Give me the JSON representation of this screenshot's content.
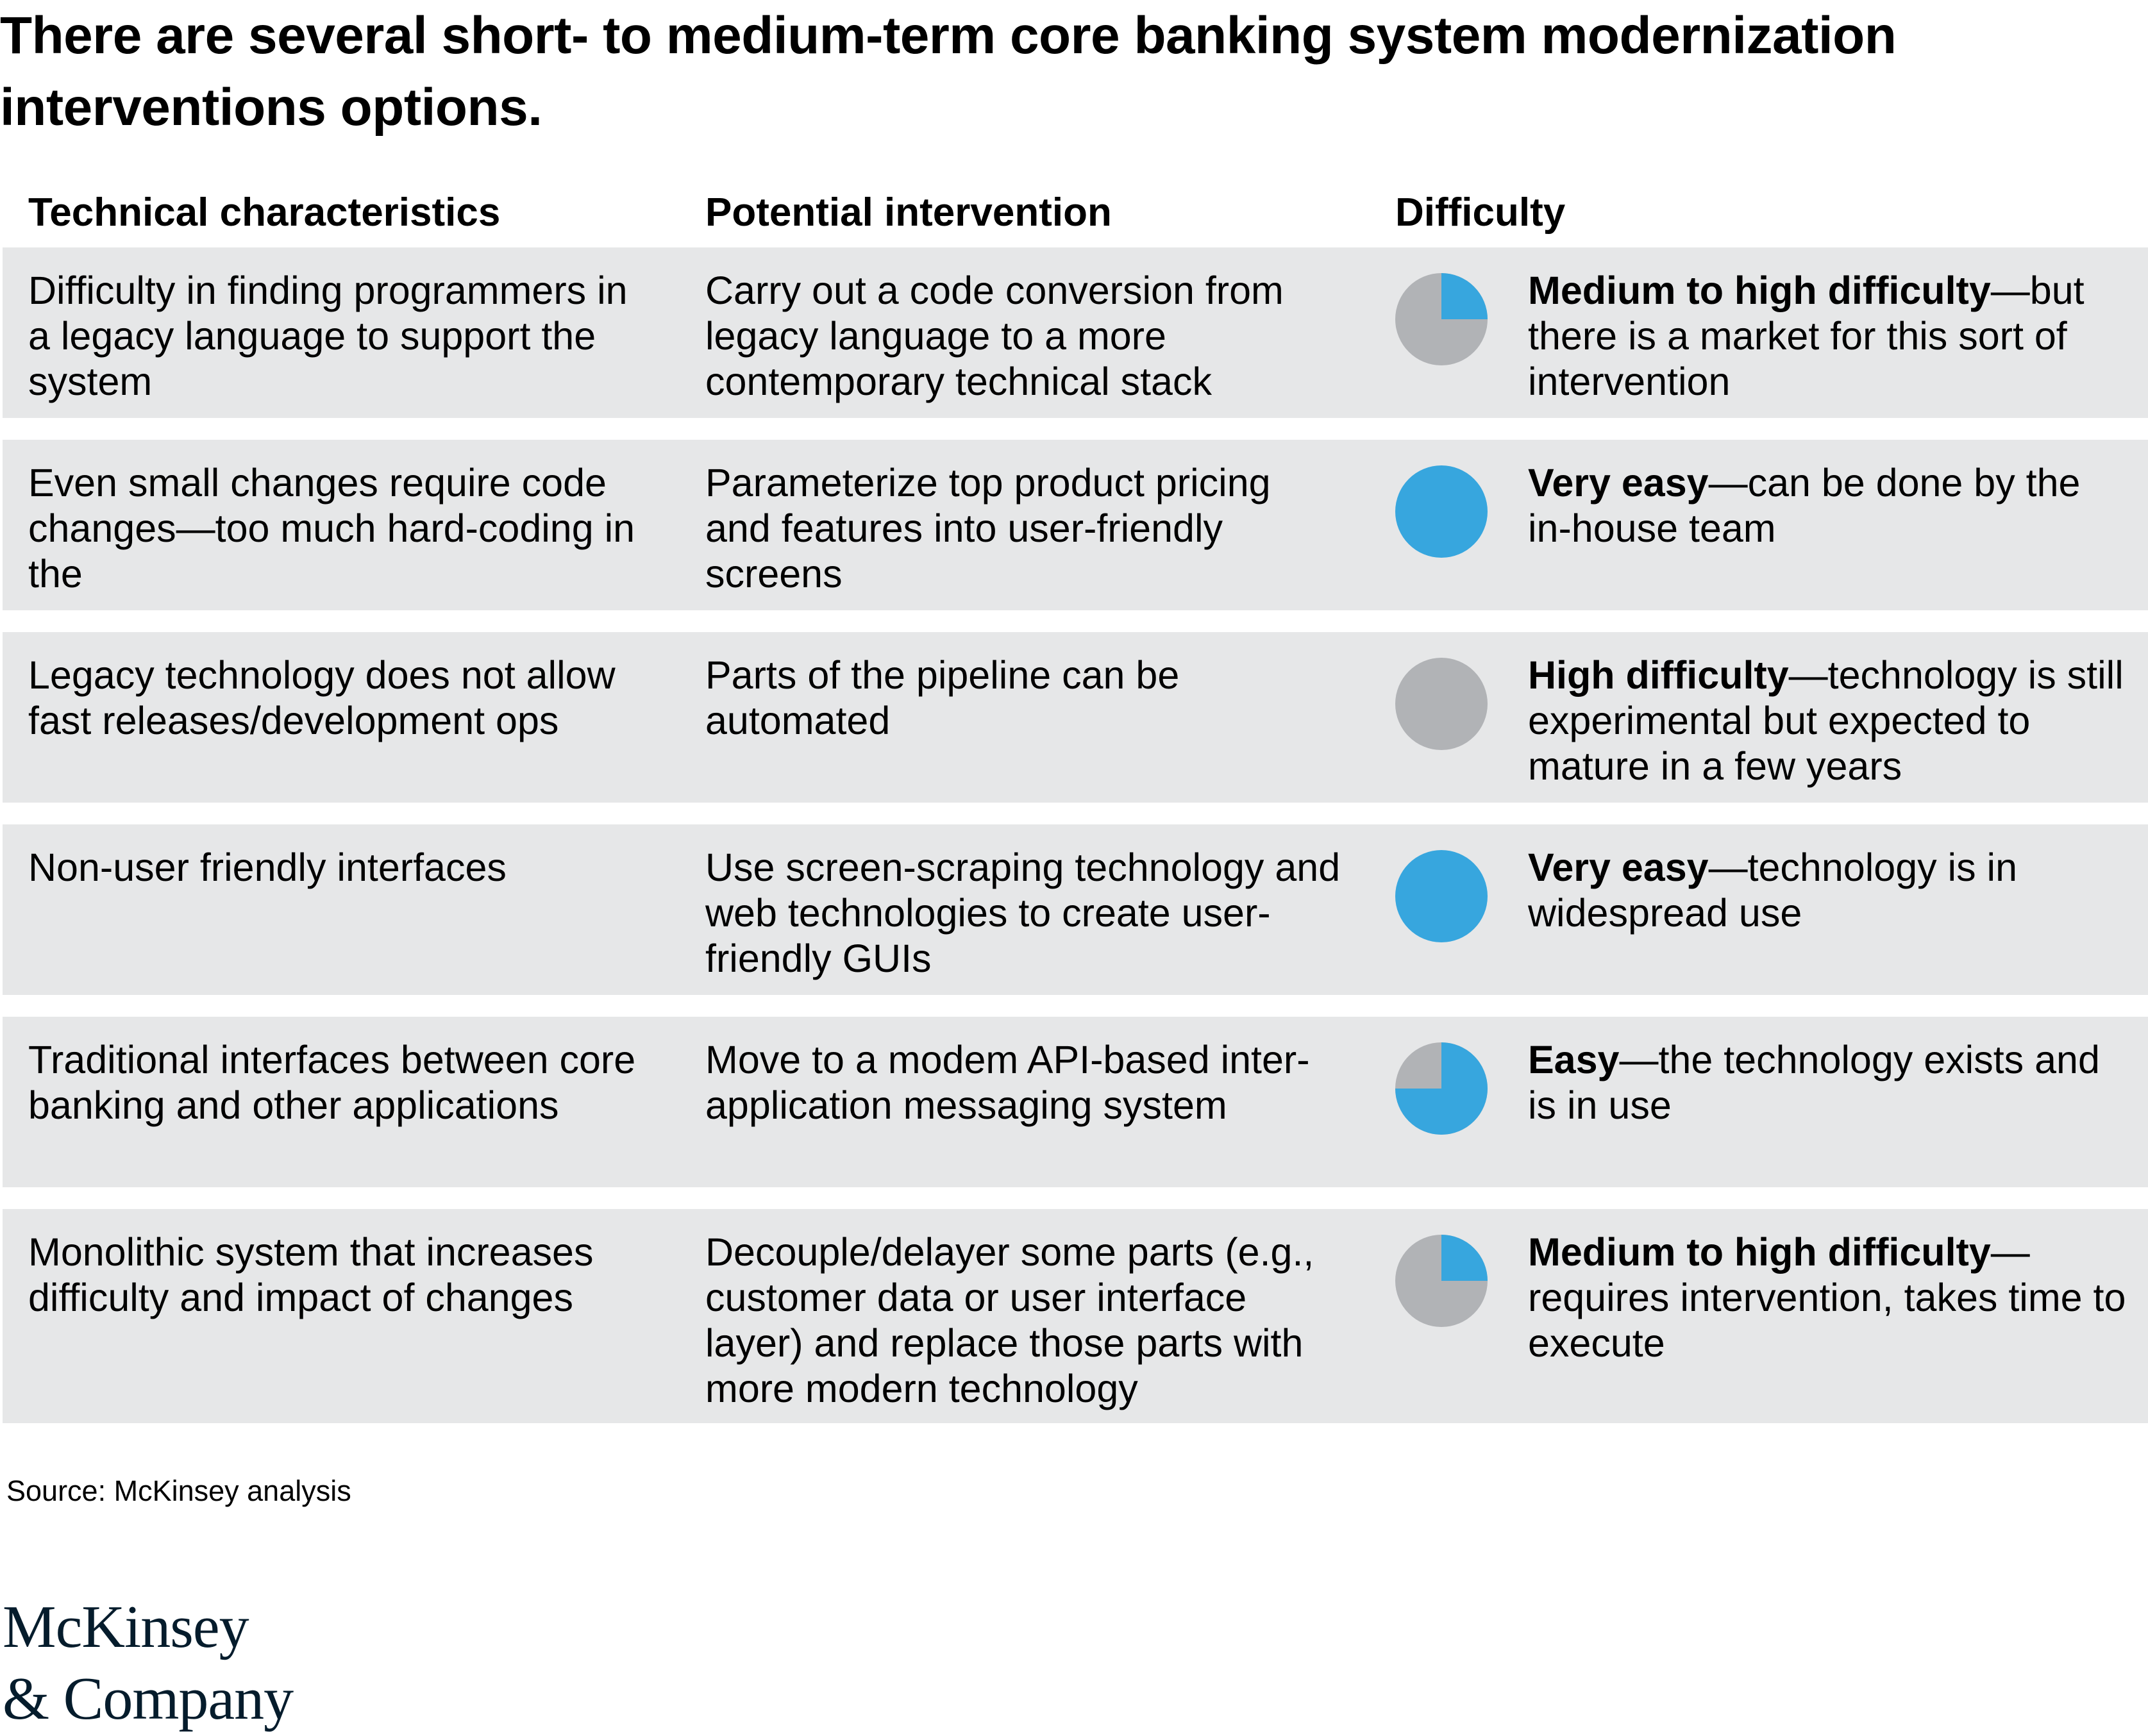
{
  "title": "There are several short- to medium-term core banking system modernization interventions options.",
  "headers": {
    "technical": "Technical characteristics",
    "intervention": "Potential intervention",
    "difficulty": "Difficulty"
  },
  "colors": {
    "pie_blue": "#37a6de",
    "pie_gray": "#b1b3b6",
    "row_band": "#e6e7e8"
  },
  "chart_data": {
    "type": "table",
    "columns": [
      "Technical characteristics",
      "Potential intervention",
      "Difficulty"
    ],
    "rows": [
      {
        "technical": "Difficulty in finding programmers in a legacy language to support the system",
        "intervention": "Carry out a code conversion from legacy language to a more contemporary technical stack",
        "difficulty_lead": "Medium to high difficulty",
        "difficulty_rest": "—but there is a market for this sort of intervention",
        "pie_blue_fraction": 0.25
      },
      {
        "technical": "Even small changes require code changes—too much hard-coding in the",
        "intervention": "Parameterize top product pricing and features into user-friendly screens",
        "difficulty_lead": "Very easy",
        "difficulty_rest": "—can be done by the in-house team",
        "pie_blue_fraction": 1.0
      },
      {
        "technical": "Legacy technology does not allow fast releases/development ops",
        "intervention": "Parts of the pipeline can be automated",
        "difficulty_lead": "High difficulty",
        "difficulty_rest": "—technology is still experimental but expected to mature in a few years",
        "pie_blue_fraction": 0.0
      },
      {
        "technical": "Non-user friendly interfaces",
        "intervention": "Use screen-scraping technology and web technologies to create user-friendly GUIs",
        "difficulty_lead": "Very easy",
        "difficulty_rest": "—technology is in widespread use",
        "pie_blue_fraction": 1.0
      },
      {
        "technical": "Traditional interfaces between core banking and other applications",
        "intervention": "Move to a modem API-based inter-application messaging system",
        "difficulty_lead": "Easy",
        "difficulty_rest": "—the technology exists and is in use",
        "pie_blue_fraction": 0.75
      },
      {
        "technical": "Monolithic system that increases difficulty and impact of changes",
        "intervention": "Decouple/delayer some parts (e.g., customer data or user interface layer) and replace those parts with more modern technology",
        "difficulty_lead": "Medium to high difficulty",
        "difficulty_rest": "—requires intervention, takes time to execute",
        "pie_blue_fraction": 0.25
      }
    ]
  },
  "source": "Source: McKinsey analysis",
  "logo": {
    "line1": "McKinsey",
    "line2": "& Company"
  }
}
